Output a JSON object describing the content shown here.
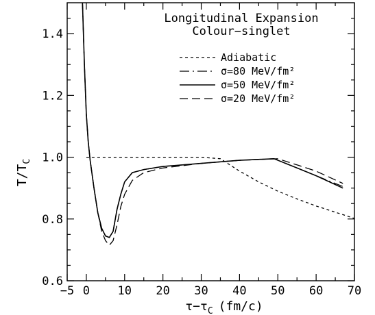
{
  "chart_data": {
    "type": "line",
    "title": "Longitudinal Expansion",
    "subtitle": "Colour−singlet",
    "xlabel": "τ−τ",
    "xlabel_sub": "C",
    "xlabel_units": "(fm/c)",
    "ylabel": "T/T",
    "ylabel_sub": "C",
    "xlim": [
      -5,
      70
    ],
    "ylim": [
      0.6,
      1.5
    ],
    "x_ticks": [
      -5,
      0,
      10,
      20,
      30,
      40,
      50,
      60,
      70
    ],
    "x_tick_labels": [
      "−5",
      "0",
      "10",
      "20",
      "30",
      "40",
      "50",
      "60",
      "70"
    ],
    "y_ticks": [
      0.6,
      0.8,
      1.0,
      1.2,
      1.4
    ],
    "y_tick_labels": [
      "0.6",
      "0.8",
      "1.0",
      "1.2",
      "1.4"
    ],
    "grid": false,
    "legend_position": "top-right",
    "series": [
      {
        "name": "Adiabatic",
        "dash": "short-dash",
        "color": "#000000",
        "points": [
          [
            0,
            1.0
          ],
          [
            10,
            1.0
          ],
          [
            20,
            1.0
          ],
          [
            30,
            1.0
          ],
          [
            35,
            0.995
          ],
          [
            40,
            0.955
          ],
          [
            45,
            0.92
          ],
          [
            50,
            0.89
          ],
          [
            55,
            0.865
          ],
          [
            60,
            0.842
          ],
          [
            65,
            0.822
          ],
          [
            70,
            0.802
          ]
        ]
      },
      {
        "name": "σ=80 MeV/fm²",
        "dash": "dash-dot",
        "color": "#000000",
        "points": [
          [
            -1,
            1.5
          ],
          [
            -0.5,
            1.3
          ],
          [
            0,
            1.14
          ],
          [
            0.5,
            1.05
          ],
          [
            1,
            0.99
          ],
          [
            2,
            0.9
          ],
          [
            3,
            0.82
          ],
          [
            4,
            0.77
          ],
          [
            5,
            0.745
          ],
          [
            6,
            0.74
          ],
          [
            7,
            0.76
          ],
          [
            8,
            0.83
          ],
          [
            9,
            0.88
          ],
          [
            10,
            0.92
          ],
          [
            12,
            0.95
          ],
          [
            15,
            0.96
          ],
          [
            20,
            0.97
          ],
          [
            30,
            0.98
          ],
          [
            40,
            0.99
          ],
          [
            49,
            0.995
          ],
          [
            55,
            0.965
          ],
          [
            60,
            0.94
          ],
          [
            67,
            0.905
          ]
        ]
      },
      {
        "name": "σ=50 MeV/fm²",
        "dash": "solid",
        "color": "#000000",
        "points": [
          [
            -1,
            1.5
          ],
          [
            -0.5,
            1.3
          ],
          [
            0,
            1.14
          ],
          [
            0.5,
            1.05
          ],
          [
            1,
            0.99
          ],
          [
            2,
            0.9
          ],
          [
            3,
            0.82
          ],
          [
            4,
            0.77
          ],
          [
            5,
            0.745
          ],
          [
            6,
            0.74
          ],
          [
            7,
            0.76
          ],
          [
            8,
            0.83
          ],
          [
            9,
            0.88
          ],
          [
            10,
            0.92
          ],
          [
            12,
            0.95
          ],
          [
            15,
            0.96
          ],
          [
            20,
            0.97
          ],
          [
            30,
            0.98
          ],
          [
            40,
            0.99
          ],
          [
            49,
            0.995
          ],
          [
            55,
            0.965
          ],
          [
            60,
            0.94
          ],
          [
            67,
            0.9
          ]
        ]
      },
      {
        "name": "σ=20 MeV/fm²",
        "dash": "long-dash",
        "color": "#000000",
        "points": [
          [
            -1,
            1.5
          ],
          [
            -0.5,
            1.3
          ],
          [
            0,
            1.14
          ],
          [
            0.5,
            1.05
          ],
          [
            1,
            0.99
          ],
          [
            2,
            0.9
          ],
          [
            3,
            0.82
          ],
          [
            4,
            0.76
          ],
          [
            5,
            0.73
          ],
          [
            6,
            0.715
          ],
          [
            7,
            0.73
          ],
          [
            8,
            0.78
          ],
          [
            9,
            0.84
          ],
          [
            10,
            0.88
          ],
          [
            12,
            0.925
          ],
          [
            15,
            0.95
          ],
          [
            20,
            0.965
          ],
          [
            30,
            0.98
          ],
          [
            40,
            0.99
          ],
          [
            50,
            0.995
          ],
          [
            55,
            0.975
          ],
          [
            60,
            0.955
          ],
          [
            67,
            0.915
          ]
        ]
      }
    ]
  }
}
